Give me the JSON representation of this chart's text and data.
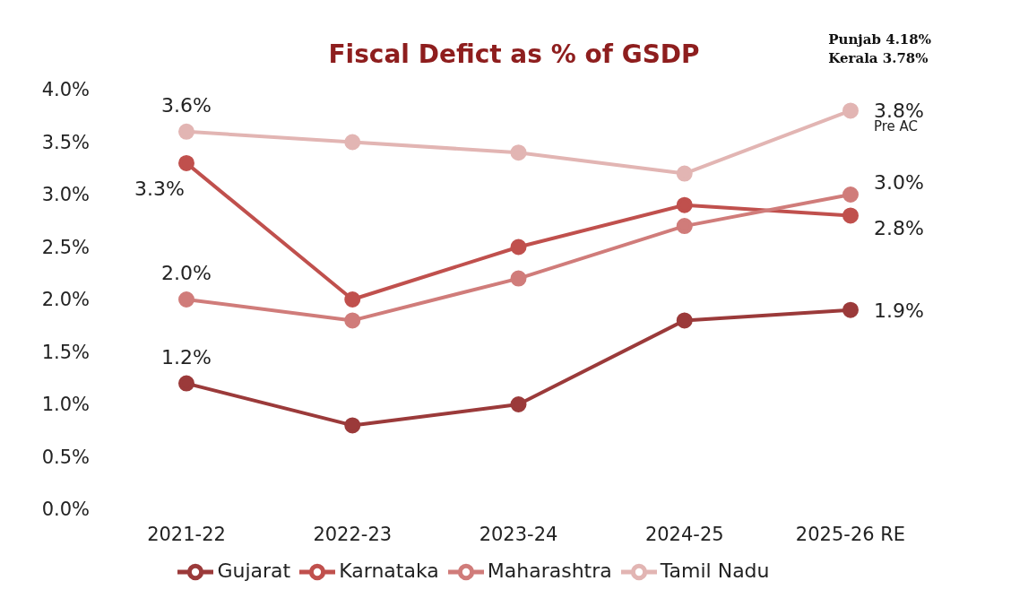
{
  "chart_data": {
    "type": "line",
    "title": "Fiscal Defict as % of GSDP",
    "categories": [
      "2021-22",
      "2022-23",
      "2023-24",
      "2024-25",
      "2025-26 RE"
    ],
    "series": [
      {
        "name": "Gujarat",
        "color": "#9b3a3a",
        "values": [
          1.2,
          0.8,
          1.0,
          1.8,
          1.9
        ],
        "value_labels": [
          "1.2%",
          null,
          null,
          null,
          "1.9%"
        ]
      },
      {
        "name": "Karnataka",
        "color": "#c0504d",
        "values": [
          3.3,
          2.0,
          2.5,
          2.9,
          2.8
        ],
        "value_labels": [
          "3.3%",
          null,
          null,
          null,
          "2.8%"
        ]
      },
      {
        "name": "Maharashtra",
        "color": "#d07c7a",
        "values": [
          2.0,
          1.8,
          2.2,
          2.7,
          3.0
        ],
        "value_labels": [
          "2.0%",
          null,
          null,
          null,
          "3.0%"
        ]
      },
      {
        "name": "Tamil Nadu",
        "color": "#e2b5b3",
        "values": [
          3.6,
          3.5,
          3.4,
          3.2,
          3.8
        ],
        "value_labels": [
          "3.6%",
          null,
          null,
          null,
          "3.8%"
        ]
      }
    ],
    "ylim": [
      0,
      4
    ],
    "yticks": [
      {
        "value": 0,
        "label": "0.0%"
      },
      {
        "value": 0.5,
        "label": "0.5%"
      },
      {
        "value": 1,
        "label": "1.0%"
      },
      {
        "value": 1.5,
        "label": "1.5%"
      },
      {
        "value": 2,
        "label": "2.0%"
      },
      {
        "value": 2.5,
        "label": "2.5%"
      },
      {
        "value": 3,
        "label": "3.0%"
      },
      {
        "value": 3.5,
        "label": "3.5%"
      },
      {
        "value": 4,
        "label": "4.0%"
      }
    ],
    "annotations": [
      "Punjab 4.18%",
      "Kerala 3.78%",
      {
        "text": "Pre AC",
        "x": "2025-26 RE",
        "y": 3.8
      }
    ],
    "grid": false,
    "legend": "bottom",
    "marker": "circle",
    "line_style": "solid"
  }
}
